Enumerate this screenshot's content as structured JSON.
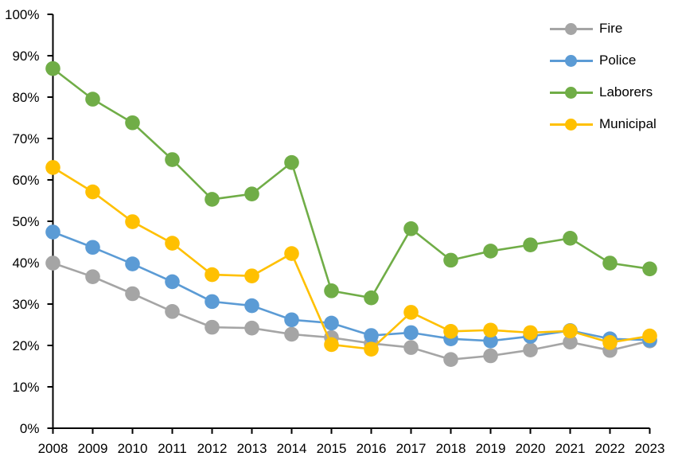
{
  "chart_data": {
    "type": "line",
    "title": "",
    "xlabel": "",
    "ylabel": "",
    "categories": [
      "2008",
      "2009",
      "2010",
      "2011",
      "2012",
      "2013",
      "2014",
      "2015",
      "2016",
      "2017",
      "2018",
      "2019",
      "2020",
      "2021",
      "2022",
      "2023"
    ],
    "series": [
      {
        "name": "Fire",
        "color": "#A5A5A5",
        "values": [
          39.9,
          36.6,
          32.5,
          28.2,
          24.4,
          24.2,
          22.7,
          21.9,
          20.5,
          19.5,
          16.6,
          17.5,
          18.9,
          20.8,
          18.8,
          21.1
        ]
      },
      {
        "name": "Police",
        "color": "#5B9BD5",
        "values": [
          47.4,
          43.7,
          39.7,
          35.4,
          30.6,
          29.6,
          26.2,
          25.4,
          22.4,
          23.1,
          21.6,
          21.1,
          22.2,
          23.6,
          21.6,
          21.3
        ]
      },
      {
        "name": "Laborers",
        "color": "#70AD47",
        "values": [
          86.9,
          79.5,
          73.8,
          64.9,
          55.3,
          56.6,
          64.2,
          33.2,
          31.5,
          48.2,
          40.6,
          42.8,
          44.3,
          45.9,
          39.9,
          38.5
        ]
      },
      {
        "name": "Municipal",
        "color": "#FFC000",
        "values": [
          63.0,
          57.1,
          49.9,
          44.7,
          37.1,
          36.8,
          42.2,
          20.2,
          19.1,
          28.0,
          23.4,
          23.7,
          23.1,
          23.5,
          20.7,
          22.3
        ]
      }
    ],
    "ylim": [
      0,
      100
    ],
    "ytick_step": 10,
    "ytick_labels": [
      "0%",
      "10%",
      "20%",
      "30%",
      "40%",
      "50%",
      "60%",
      "70%",
      "80%",
      "90%",
      "100%"
    ],
    "grid": false,
    "legend_position": "top-right",
    "axis_color": "#000000",
    "background": "#FFFFFF"
  }
}
